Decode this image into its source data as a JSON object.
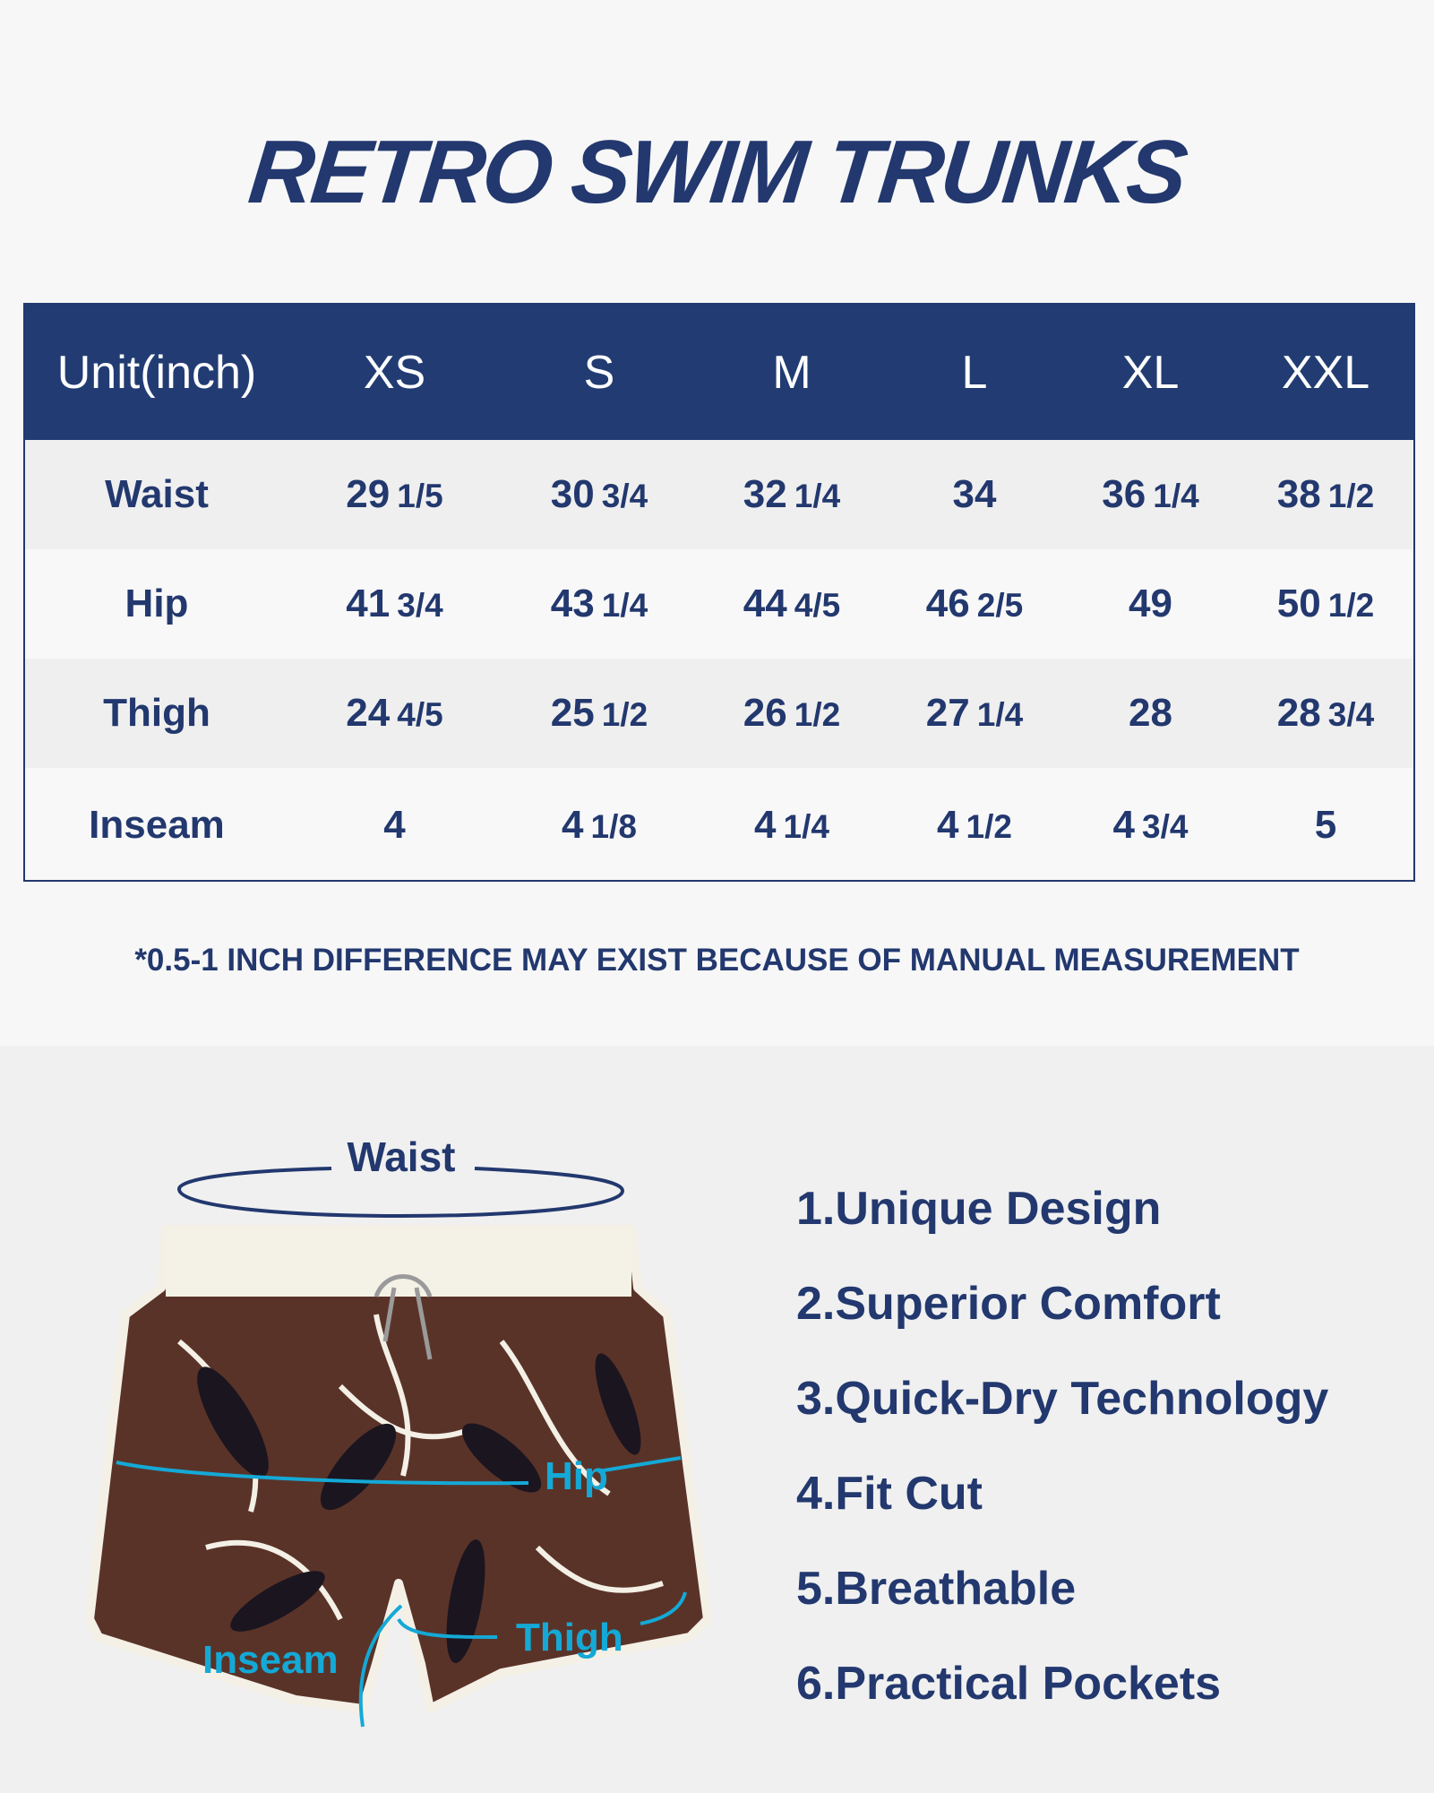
{
  "title": "RETRO SWIM TRUNKS",
  "table": {
    "headers": [
      "Unit(inch)",
      "XS",
      "S",
      "M",
      "L",
      "XL",
      "XXL"
    ],
    "rows": [
      {
        "label": "Waist",
        "values": [
          {
            "whole": "29",
            "frac": "1/5"
          },
          {
            "whole": "30",
            "frac": "3/4"
          },
          {
            "whole": "32",
            "frac": "1/4"
          },
          {
            "whole": "34",
            "frac": ""
          },
          {
            "whole": "36",
            "frac": "1/4"
          },
          {
            "whole": "38",
            "frac": "1/2"
          }
        ]
      },
      {
        "label": "Hip",
        "values": [
          {
            "whole": "41",
            "frac": "3/4"
          },
          {
            "whole": "43",
            "frac": "1/4"
          },
          {
            "whole": "44",
            "frac": "4/5"
          },
          {
            "whole": "46",
            "frac": "2/5"
          },
          {
            "whole": "49",
            "frac": ""
          },
          {
            "whole": "50",
            "frac": "1/2"
          }
        ]
      },
      {
        "label": "Thigh",
        "values": [
          {
            "whole": "24",
            "frac": "4/5"
          },
          {
            "whole": "25",
            "frac": "1/2"
          },
          {
            "whole": "26",
            "frac": "1/2"
          },
          {
            "whole": "27",
            "frac": "1/4"
          },
          {
            "whole": "28",
            "frac": ""
          },
          {
            "whole": "28",
            "frac": "3/4"
          }
        ]
      },
      {
        "label": "Inseam",
        "values": [
          {
            "whole": "4",
            "frac": ""
          },
          {
            "whole": "4",
            "frac": "1/8"
          },
          {
            "whole": "4",
            "frac": "1/4"
          },
          {
            "whole": "4",
            "frac": "1/2"
          },
          {
            "whole": "4",
            "frac": "3/4"
          },
          {
            "whole": "5",
            "frac": ""
          }
        ]
      }
    ]
  },
  "note": "*0.5-1 INCH DIFFERENCE MAY EXIST BECAUSE OF MANUAL MEASUREMENT",
  "diagram": {
    "waist": "Waist",
    "hip": "Hip",
    "thigh": "Thigh",
    "inseam": "Inseam"
  },
  "features": [
    "1.Unique Design",
    "2.Superior Comfort",
    "3.Quick-Dry Technology",
    "4.Fit Cut",
    "5.Breathable",
    "6.Practical Pockets"
  ],
  "colors": {
    "navy": "#22386e",
    "header_bg": "#223c73",
    "measure_line": "#14a9d6",
    "fabric": "#5a3328"
  }
}
